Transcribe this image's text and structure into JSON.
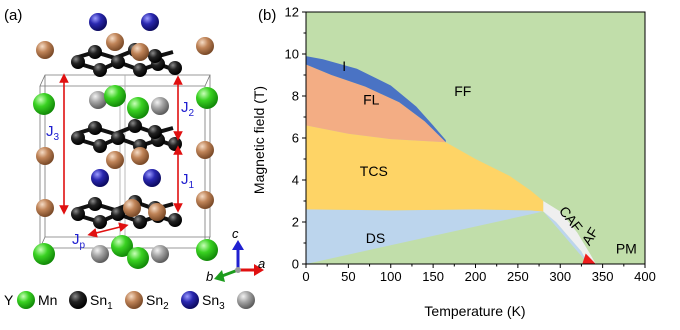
{
  "panel_a": {
    "label": "(a)",
    "couplings": {
      "j3": {
        "main": "J",
        "sub": "3"
      },
      "j2": {
        "main": "J",
        "sub": "2"
      },
      "j1": {
        "main": "J",
        "sub": "1"
      },
      "jp": {
        "main": "J",
        "sub": "p"
      }
    },
    "axes": {
      "c": "c",
      "b": "b",
      "a": "a"
    },
    "legend": [
      {
        "label": "Y",
        "sub": "",
        "color": "#46d12e"
      },
      {
        "label": "Mn",
        "sub": "",
        "color": "#222222"
      },
      {
        "label": "Sn",
        "sub": "1",
        "color": "#c08458"
      },
      {
        "label": "Sn",
        "sub": "2",
        "color": "#2a28b0"
      },
      {
        "label": "Sn",
        "sub": "3",
        "color": "#a6a6a6"
      }
    ]
  },
  "panel_b": {
    "label": "(b)",
    "chart_data": {
      "type": "area",
      "xlabel": "Temperature (K)",
      "ylabel": "Magnetic field (T)",
      "xlim": [
        0,
        400
      ],
      "ylim": [
        0,
        12
      ],
      "xticks": [
        "0",
        "50",
        "100",
        "150",
        "200",
        "250",
        "300",
        "350",
        "400"
      ],
      "yticks": [
        "0",
        "2",
        "4",
        "6",
        "8",
        "10",
        "12"
      ],
      "regions": [
        {
          "name": "FF",
          "color": "#c1deaa"
        },
        {
          "name": "I",
          "color": "#4a73c4"
        },
        {
          "name": "FL",
          "color": "#f3ad84"
        },
        {
          "name": "TCS",
          "color": "#fed466"
        },
        {
          "name": "DS",
          "color": "#bcd5ed"
        },
        {
          "name": "CAF",
          "color": "#efefef"
        },
        {
          "name": "AF",
          "color": "#ee1c1c"
        },
        {
          "name": "PM",
          "color": "#c1deaa"
        }
      ],
      "boundaries": {
        "i_upper": [
          [
            0,
            9.9
          ],
          [
            20,
            9.75
          ],
          [
            60,
            9.3
          ],
          [
            100,
            8.5
          ],
          [
            130,
            7.5
          ],
          [
            150,
            6.6
          ],
          [
            165,
            5.9
          ]
        ],
        "i_lower": [
          [
            0,
            9.5
          ],
          [
            30,
            9.0
          ],
          [
            70,
            8.45
          ],
          [
            110,
            7.7
          ],
          [
            140,
            6.8
          ],
          [
            165,
            5.8
          ]
        ],
        "fl_lower": [
          [
            0,
            6.6
          ],
          [
            50,
            6.2
          ],
          [
            100,
            5.95
          ],
          [
            165,
            5.8
          ]
        ],
        "tcs_upper": [
          [
            165,
            5.8
          ],
          [
            200,
            5.0
          ],
          [
            240,
            4.2
          ],
          [
            265,
            3.5
          ],
          [
            280,
            3.0
          ]
        ],
        "tcs_lower": [
          [
            0,
            2.6
          ],
          [
            100,
            2.55
          ],
          [
            200,
            2.6
          ],
          [
            265,
            2.55
          ],
          [
            280,
            2.5
          ]
        ],
        "caf_upper": [
          [
            280,
            3.0
          ],
          [
            300,
            2.5
          ],
          [
            320,
            1.5
          ],
          [
            335,
            0.5
          ],
          [
            342,
            0.0
          ]
        ],
        "caf_lower": [
          [
            280,
            2.5
          ],
          [
            295,
            2.0
          ],
          [
            310,
            1.3
          ],
          [
            325,
            0.6
          ],
          [
            333,
            0.0
          ]
        ],
        "af_upper": [
          [
            330,
            0.5
          ],
          [
            342,
            0.0
          ]
        ],
        "af_lower": [
          [
            333,
            0.0
          ]
        ]
      },
      "labels": [
        {
          "text": "I",
          "x": 45,
          "y": 9.2
        },
        {
          "text": "FL",
          "x": 77,
          "y": 7.6
        },
        {
          "text": "FF",
          "x": 185,
          "y": 8.0
        },
        {
          "text": "TCS",
          "x": 80,
          "y": 4.2
        },
        {
          "text": "DS",
          "x": 82,
          "y": 1.0
        },
        {
          "text": "CAF",
          "x": 308,
          "y": 2.0
        },
        {
          "text": "AF",
          "x": 340,
          "y": 1.2
        },
        {
          "text": "PM",
          "x": 378,
          "y": 0.5
        }
      ]
    }
  }
}
